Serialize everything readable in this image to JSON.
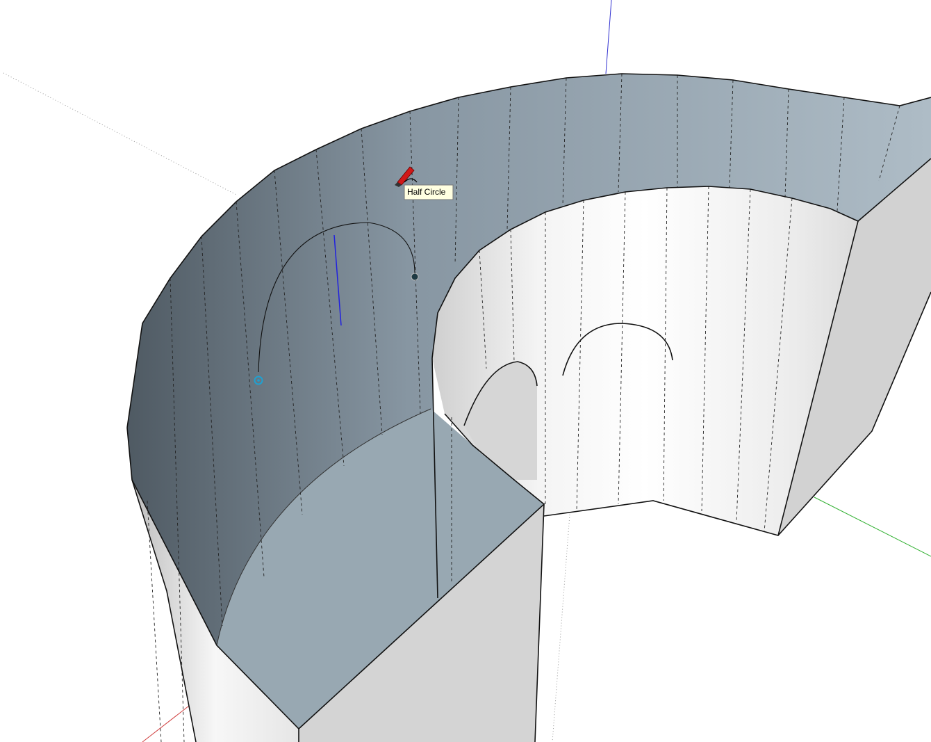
{
  "tooltip": {
    "label": "Half Circle"
  }
}
